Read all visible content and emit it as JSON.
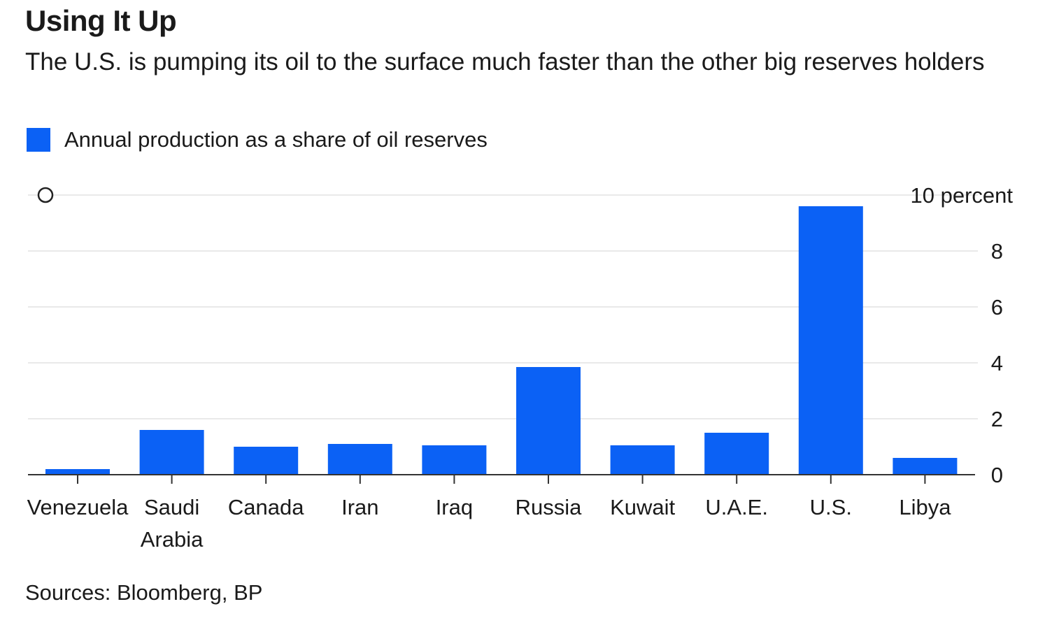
{
  "header": {
    "title": "Using It Up",
    "subtitle": "The U.S. is pumping its oil to the surface much faster than the other big reserves holders"
  },
  "legend": {
    "label": "Annual production as a share of oil reserves",
    "color": "#0b61f5"
  },
  "chart_data": {
    "type": "bar",
    "title": "Using It Up",
    "subtitle": "The U.S. is pumping its oil to the surface much faster than the other big reserves holders",
    "categories": [
      "Venezuela",
      "Saudi Arabia",
      "Canada",
      "Iran",
      "Iraq",
      "Russia",
      "Kuwait",
      "U.A.E.",
      "U.S.",
      "Libya"
    ],
    "category_lines": [
      [
        "Venezuela"
      ],
      [
        "Saudi",
        "Arabia"
      ],
      [
        "Canada"
      ],
      [
        "Iran"
      ],
      [
        "Iraq"
      ],
      [
        "Russia"
      ],
      [
        "Kuwait"
      ],
      [
        "U.A.E."
      ],
      [
        "U.S."
      ],
      [
        "Libya"
      ]
    ],
    "series": [
      {
        "name": "Annual production as a share of oil reserves",
        "color": "#0b61f5",
        "values": [
          0.2,
          1.6,
          1.0,
          1.1,
          1.05,
          3.85,
          1.05,
          1.5,
          9.6,
          0.6
        ]
      }
    ],
    "ylim": [
      0,
      10
    ],
    "yticks": [
      0,
      2,
      4,
      6,
      8,
      10
    ],
    "ytick_labels": [
      "0",
      "2",
      "4",
      "6",
      "8",
      "10 percent"
    ],
    "axis_side": "right",
    "grid": true,
    "marker_label": "O"
  },
  "footer": {
    "source": "Sources: Bloomberg, BP"
  }
}
